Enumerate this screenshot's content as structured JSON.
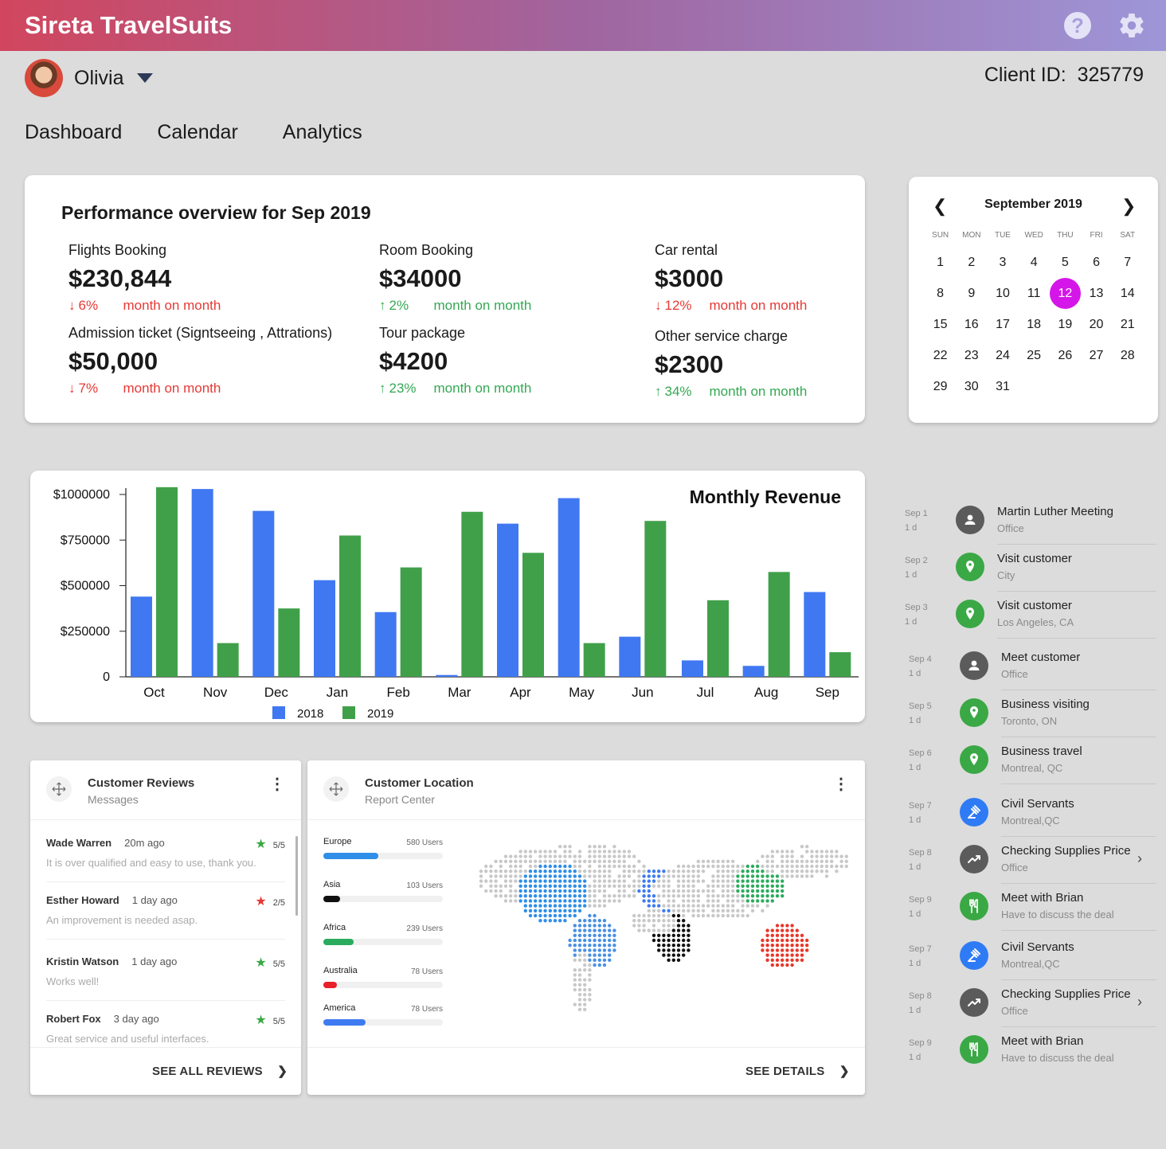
{
  "app": {
    "title": "Sireta TravelSuits"
  },
  "user": {
    "name": "Olivia",
    "client_id_label": "Client ID:",
    "client_id": "325779"
  },
  "nav": [
    "Dashboard",
    "Calendar",
    "Analytics"
  ],
  "performance": {
    "title": "Performance overview for Sep 2019",
    "change_label": "month on month",
    "metrics": [
      {
        "label": "Flights Booking",
        "value": "$230,844",
        "change": "6%",
        "direction": "down"
      },
      {
        "label": "Room Booking",
        "value": "$34000",
        "change": "2%",
        "direction": "up"
      },
      {
        "label": "Car rental",
        "value": "$3000",
        "change": "12%",
        "direction": "down"
      },
      {
        "label": "Admission ticket (Signtseeing , Attrations)",
        "value": "$50,000",
        "change": "7%",
        "direction": "down"
      },
      {
        "label": "Tour package",
        "value": "$4200",
        "change": "23%",
        "direction": "up"
      },
      {
        "label": "Other service charge",
        "value": "$2300",
        "change": "34%",
        "direction": "up"
      }
    ]
  },
  "calendar": {
    "month": "September 2019",
    "weekdays": [
      "SUN",
      "MON",
      "TUE",
      "WED",
      "THU",
      "FRI",
      "SAT"
    ],
    "days": 31,
    "start_weekday": 0,
    "selected": 12,
    "selected_color": "#d516e8"
  },
  "chart_data": {
    "type": "bar",
    "title": "Monthly Revenue",
    "categories": [
      "Oct",
      "Nov",
      "Dec",
      "Jan",
      "Feb",
      "Mar",
      "Apr",
      "May",
      "Jun",
      "Jul",
      "Aug",
      "Sep"
    ],
    "series": [
      {
        "name": "2018",
        "color": "#4078f2",
        "values": [
          440000,
          1030000,
          910000,
          530000,
          355000,
          10000,
          840000,
          980000,
          220000,
          90000,
          60000,
          465000
        ]
      },
      {
        "name": "2019",
        "color": "#40a04a",
        "values": [
          1040000,
          185000,
          375000,
          775000,
          600000,
          905000,
          680000,
          185000,
          855000,
          420000,
          575000,
          135000
        ]
      }
    ],
    "yticks": [
      0,
      250000,
      500000,
      750000,
      1000000
    ],
    "ytick_labels": [
      "0",
      "$250000",
      "$500000",
      "$750000",
      "$1000000"
    ],
    "ylim": [
      0,
      1050000
    ],
    "legend": "bottom-center",
    "grid": false
  },
  "schedule": [
    {
      "date": "Sep 1",
      "dur": "1 d",
      "title": "Martin Luther Meeting",
      "sub": "Office",
      "icon": "person-icon",
      "color": "#5b5b5b",
      "chevron": false
    },
    {
      "date": "Sep 2",
      "dur": "1 d",
      "title": "Visit customer",
      "sub": "City",
      "icon": "location-pin-icon",
      "color": "#3aa845",
      "chevron": false
    },
    {
      "date": "Sep 3",
      "dur": "1 d",
      "title": "Visit customer",
      "sub": "Los Angeles, CA",
      "icon": "location-pin-icon",
      "color": "#3aa845",
      "chevron": false
    },
    {
      "date": "Sep 4",
      "dur": "1 d",
      "title": "Meet customer",
      "sub": "Office",
      "icon": "person-icon",
      "color": "#5b5b5b",
      "chevron": false
    },
    {
      "date": "Sep 5",
      "dur": "1 d",
      "title": "Business visiting",
      "sub": "Toronto, ON",
      "icon": "location-pin-icon",
      "color": "#3aa845",
      "chevron": false
    },
    {
      "date": "Sep 6",
      "dur": "1 d",
      "title": "Business travel",
      "sub": "Montreal, QC",
      "icon": "location-pin-icon",
      "color": "#3aa845",
      "chevron": false
    },
    {
      "date": "Sep 7",
      "dur": "1 d",
      "title": "Civil Servants",
      "sub": "Montreal,QC",
      "icon": "gavel-icon",
      "color": "#2f7bf5",
      "chevron": false
    },
    {
      "date": "Sep 8",
      "dur": "1 d",
      "title": "Checking Supplies Price",
      "sub": "Office",
      "icon": "trend-icon",
      "color": "#5b5b5b",
      "chevron": true
    },
    {
      "date": "Sep 9",
      "dur": "1 d",
      "title": "Meet with Brian",
      "sub": "Have to discuss the deal",
      "icon": "restaurant-icon",
      "color": "#3aa845",
      "chevron": false
    },
    {
      "date": "Sep 7",
      "dur": "1 d",
      "title": "Civil Servants",
      "sub": "Montreal,QC",
      "icon": "gavel-icon",
      "color": "#2f7bf5",
      "chevron": false
    },
    {
      "date": "Sep 8",
      "dur": "1 d",
      "title": "Checking Supplies Price",
      "sub": "Office",
      "icon": "trend-icon",
      "color": "#5b5b5b",
      "chevron": true
    },
    {
      "date": "Sep 9",
      "dur": "1 d",
      "title": "Meet with Brian",
      "sub": "Have to discuss the deal",
      "icon": "restaurant-icon",
      "color": "#3aa845",
      "chevron": false
    }
  ],
  "reviews": {
    "title": "Customer Reviews",
    "subtitle": "Messages",
    "items": [
      {
        "name": "Wade Warren",
        "time": "20m ago",
        "score": "5/5",
        "star_color": "#3aa845",
        "text": "It is over qualified and easy to use, thank you."
      },
      {
        "name": "Esther Howard",
        "time": "1 day ago",
        "score": "2/5",
        "star_color": "#e53935",
        "text": "An improvement is needed asap."
      },
      {
        "name": "Kristin Watson",
        "time": "1 day ago",
        "score": "5/5",
        "star_color": "#3aa845",
        "text": "Works well!"
      },
      {
        "name": "Robert Fox",
        "time": "3 day ago",
        "score": "5/5",
        "star_color": "#3aa845",
        "text": "Great service and useful interfaces."
      }
    ],
    "footer": "SEE ALL REVIEWS"
  },
  "location": {
    "title": "Customer Location",
    "subtitle": "Report Center",
    "regions": [
      {
        "name": "Europe",
        "users": "580 Users",
        "fill": 0.46,
        "color": "#2f8ee8"
      },
      {
        "name": "Asia",
        "users": "103 Users",
        "fill": 0.14,
        "color": "#111111"
      },
      {
        "name": "Africa",
        "users": "239 Users",
        "fill": 0.25,
        "color": "#2bab5e"
      },
      {
        "name": "Australia",
        "users": "78 Users",
        "fill": 0.11,
        "color": "#e8202a"
      },
      {
        "name": "America",
        "users": "78 Users",
        "fill": 0.35,
        "color": "#3e7bf0"
      }
    ],
    "footer": "SEE DETAILS"
  }
}
